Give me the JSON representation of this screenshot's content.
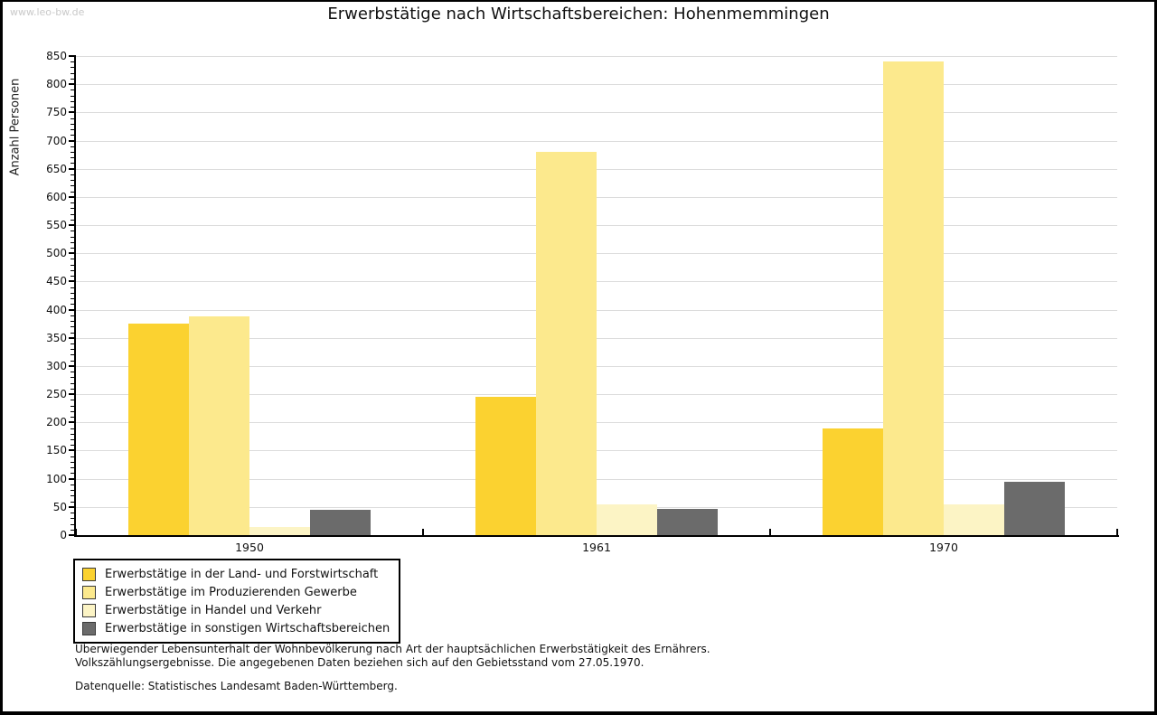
{
  "watermark": "www.leo-bw.de",
  "title": "Erwerbstätige nach Wirtschaftsbereichen: Hohenmemmingen",
  "chart_data": {
    "type": "bar",
    "title": "Erwerbstätige nach Wirtschaftsbereichen: Hohenmemmingen",
    "xlabel": "",
    "ylabel": "Anzahl Personen",
    "categories": [
      "1950",
      "1961",
      "1970"
    ],
    "series": [
      {
        "name": "Erwerbstätige in der Land- und Forstwirtschaft",
        "color": "#fbd230",
        "values": [
          375,
          245,
          190
        ]
      },
      {
        "name": "Erwerbstätige im Produzierenden Gewerbe",
        "color": "#fce98d",
        "values": [
          388,
          680,
          840
        ]
      },
      {
        "name": "Erwerbstätige in Handel und Verkehr",
        "color": "#fcf4c5",
        "values": [
          15,
          55,
          55
        ]
      },
      {
        "name": "Erwerbstätige in sonstigen Wirtschaftsbereichen",
        "color": "#6b6b6b",
        "values": [
          45,
          47,
          95
        ]
      }
    ],
    "ylim": [
      0,
      850
    ],
    "ytick_step": 50,
    "yminortick_step": 10,
    "grid": true,
    "gridline_color": "#dcdcdc",
    "legend_position": "bottom-left"
  },
  "footer": {
    "line1": "Überwiegender Lebensunterhalt der Wohnbevölkerung nach Art der hauptsächlichen Erwerbstätigkeit des Ernährers.",
    "line2": "Volkszählungsergebnisse. Die angegebenen Daten beziehen sich auf den Gebietsstand vom 27.05.1970.",
    "source": "Datenquelle: Statistisches Landesamt Baden-Württemberg."
  }
}
